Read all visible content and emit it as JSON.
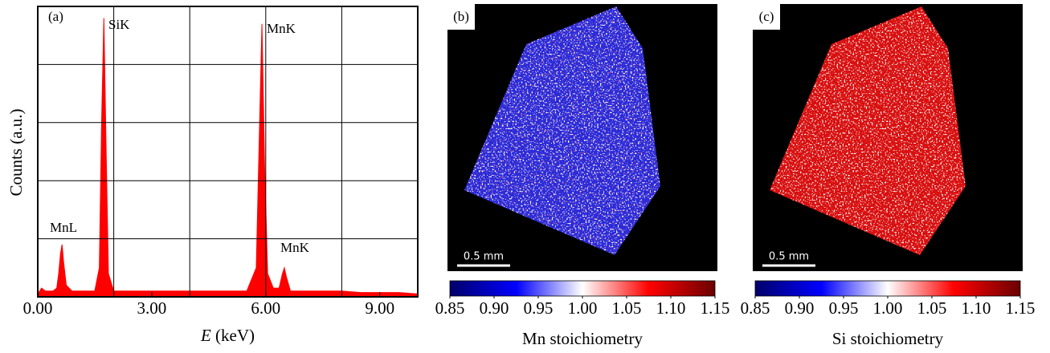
{
  "chart_data": [
    {
      "type": "area",
      "panel_label": "(a)",
      "xlabel": {
        "symbol": "E",
        "unit": "(keV)"
      },
      "ylabel": "Counts (a.u.)",
      "xlim": [
        0,
        10
      ],
      "ylim": [
        0,
        1
      ],
      "xticks": [
        {
          "value": 0,
          "label": "0.00"
        },
        {
          "value": 3,
          "label": "3.00"
        },
        {
          "value": 6,
          "label": "6.00"
        },
        {
          "value": 9,
          "label": "9.00"
        }
      ],
      "xgrid": [
        2,
        4,
        6,
        8
      ],
      "ygrid": [
        0.2,
        0.4,
        0.6,
        0.8
      ],
      "grid": true,
      "x": [
        0,
        0.1,
        0.2,
        0.3,
        0.4,
        0.5,
        0.55,
        0.6,
        0.64,
        0.68,
        0.75,
        0.9,
        1.2,
        1.5,
        1.62,
        1.68,
        1.74,
        1.8,
        1.86,
        2.0,
        2.5,
        3,
        3.5,
        4,
        4.5,
        5,
        5.5,
        5.75,
        5.83,
        5.9,
        5.97,
        6.05,
        6.2,
        6.35,
        6.44,
        6.49,
        6.54,
        6.65,
        7,
        7.5,
        8,
        8.5,
        9,
        9.5,
        10
      ],
      "series": [
        {
          "color": "#ff0000",
          "values": [
            0.01,
            0.03,
            0.02,
            0.02,
            0.02,
            0.03,
            0.08,
            0.15,
            0.18,
            0.12,
            0.04,
            0.02,
            0.02,
            0.02,
            0.1,
            0.6,
            0.96,
            0.5,
            0.08,
            0.02,
            0.02,
            0.02,
            0.02,
            0.02,
            0.02,
            0.02,
            0.02,
            0.1,
            0.55,
            0.94,
            0.45,
            0.08,
            0.03,
            0.03,
            0.08,
            0.1,
            0.07,
            0.02,
            0.02,
            0.02,
            0.02,
            0.015,
            0.015,
            0.015,
            0.01
          ]
        }
      ],
      "annotations": [
        "MnL",
        "SiK",
        "MnK",
        "MnK"
      ]
    },
    {
      "type": "heatmap",
      "panel_label": "(b)",
      "scale_bar": "0.5 mm",
      "colorbar_label": "Mn stoichiometry",
      "colormap": [
        "#00006a",
        "#0000ff",
        "#ffffff",
        "#ff0000",
        "#6a0000"
      ],
      "clim": [
        0.85,
        1.15
      ],
      "cticks": [
        0.85,
        {
          "value": 0.9,
          "label": "0.90"
        },
        0.95,
        {
          "value": 1,
          "label": "1.00"
        },
        1.05,
        {
          "value": 1.1,
          "label": "1.10"
        },
        1.15
      ]
    },
    {
      "type": "heatmap",
      "panel_label": "(c)",
      "scale_bar": "0.5 mm",
      "colorbar_label": "Si stoichiometry",
      "colormap": [
        "#00006a",
        "#0000ff",
        "#ffffff",
        "#ff0000",
        "#6a0000"
      ],
      "clim": [
        0.85,
        1.15
      ],
      "cticks": [
        0.85,
        {
          "value": 0.9,
          "label": "0.90"
        },
        0.95,
        {
          "value": 1,
          "label": "1.00"
        },
        1.05,
        {
          "value": 1.1,
          "label": "1.10"
        },
        1.15
      ]
    }
  ]
}
